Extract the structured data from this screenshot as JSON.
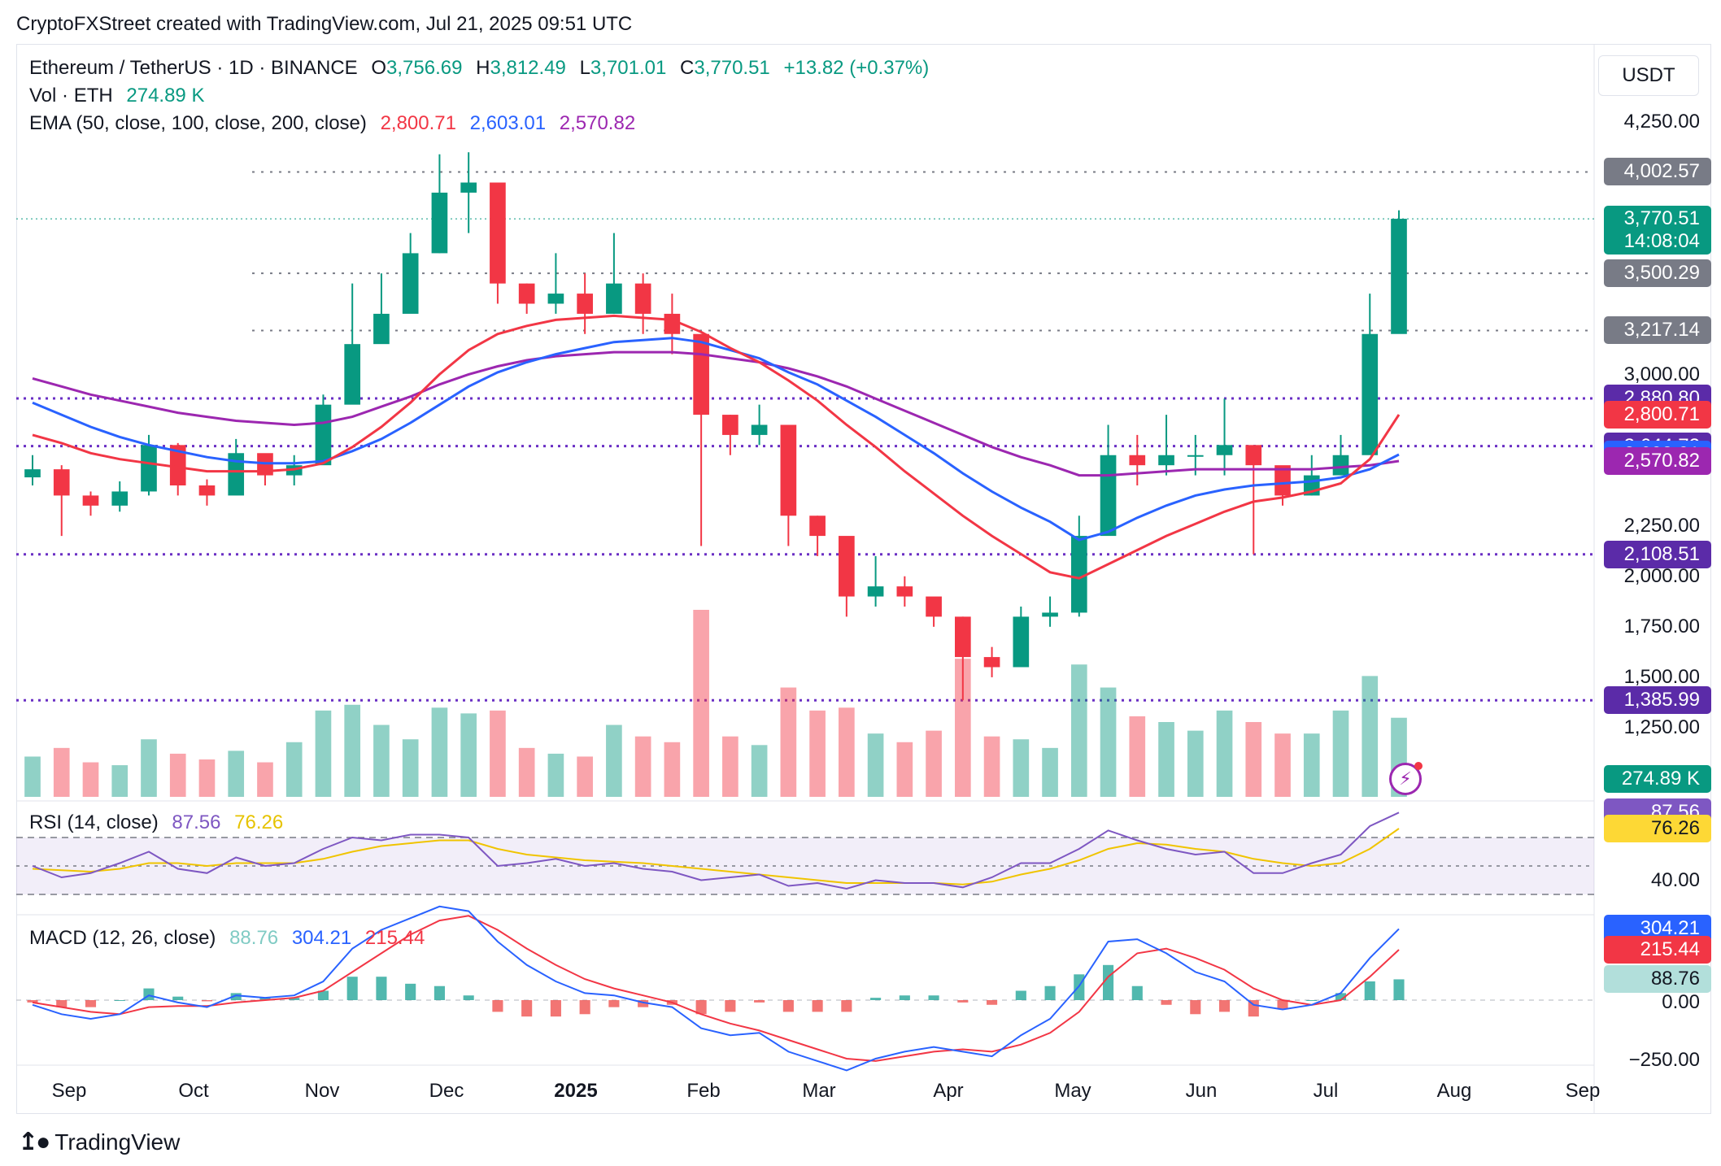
{
  "header": {
    "credit": "CryptoFXStreet created with TradingView.com, Jul 21, 2025 09:51 UTC"
  },
  "legend": {
    "symbol": "Ethereum / TetherUS · 1D · BINANCE",
    "open_label": "O",
    "open": "3,756.69",
    "high_label": "H",
    "high": "3,812.49",
    "low_label": "L",
    "low": "3,701.01",
    "close_label": "C",
    "close": "3,770.51",
    "change": "+13.82 (+0.37%)",
    "vol_label": "Vol · ETH",
    "vol": "274.89 K",
    "ema_label": "EMA (50, close, 100, close, 200, close)",
    "ema50": "2,800.71",
    "ema100": "2,603.01",
    "ema200": "2,570.82",
    "rsi_label": "RSI (14, close)",
    "rsi": "87.56",
    "rsi_ma": "76.26",
    "macd_label": "MACD (12, 26, close)",
    "macd_hist": "88.76",
    "macd": "304.21",
    "macd_signal": "215.44"
  },
  "currency_button": "USDT",
  "footer": {
    "brand": "TradingView"
  },
  "colors": {
    "up": "#089981",
    "down": "#f23645",
    "ema50": "#f23645",
    "ema100": "#2962ff",
    "ema200": "#9c27b0",
    "level": "#6a2fc4",
    "rsi": "#7e57c2",
    "rsi_ma": "#fdd835",
    "macd": "#2962ff",
    "signal": "#f23645",
    "hist_up": "#26a69a",
    "hist_down": "#ef5350",
    "neutral": "#808080"
  },
  "price_axis": {
    "ticks": [
      "4,250.00",
      "3,000.00",
      "2,250.00",
      "2,000.00",
      "1,750.00",
      "1,500.00",
      "1,250.00"
    ]
  },
  "rsi_axis": {
    "ticks": [
      "40.00"
    ]
  },
  "macd_axis": {
    "ticks": [
      "0.00",
      "−250.00"
    ]
  },
  "time_axis": {
    "ticks": [
      "Sep",
      "Oct",
      "Nov",
      "Dec",
      "2025",
      "Feb",
      "Mar",
      "Apr",
      "May",
      "Jun",
      "Jul",
      "Aug",
      "Sep"
    ]
  },
  "price_labels": [
    {
      "text": "4,002.57",
      "color": "#787b86"
    },
    {
      "text": "3,770.51",
      "sub": "14:08:04",
      "color": "#089981"
    },
    {
      "text": "3,500.29",
      "color": "#787b86"
    },
    {
      "text": "3,217.14",
      "color": "#787b86"
    },
    {
      "text": "2,880.80",
      "color": "#5b2ba8"
    },
    {
      "text": "2,800.71",
      "color": "#f23645"
    },
    {
      "text": "2,644.72",
      "color": "#5b2ba8"
    },
    {
      "text": "2,603.01",
      "color": "#2962ff"
    },
    {
      "text": "2,570.82",
      "color": "#9c27b0"
    },
    {
      "text": "2,108.51",
      "color": "#5b2ba8"
    },
    {
      "text": "1,385.99",
      "color": "#5b2ba8"
    },
    {
      "text": "274.89 K",
      "color": "#089981"
    },
    {
      "text": "87.56",
      "color": "#7e57c2"
    },
    {
      "text": "76.26",
      "color": "#fdd835",
      "dark_text": true
    },
    {
      "text": "304.21",
      "color": "#2962ff"
    },
    {
      "text": "215.44",
      "color": "#f23645"
    },
    {
      "text": "88.76",
      "color": "#b2dfdb",
      "dark_text": true
    }
  ],
  "chart_data": {
    "type": "candlestick",
    "title": "Ethereum / TetherUS · 1D · BINANCE",
    "y_range": [
      1150,
      4400
    ],
    "dates": [
      "2024-08-28",
      "2024-09-04",
      "2024-09-11",
      "2024-09-18",
      "2024-09-25",
      "2024-10-02",
      "2024-10-09",
      "2024-10-16",
      "2024-10-23",
      "2024-10-30",
      "2024-11-06",
      "2024-11-13",
      "2024-11-20",
      "2024-11-27",
      "2024-12-04",
      "2024-12-11",
      "2024-12-18",
      "2024-12-25",
      "2025-01-01",
      "2025-01-08",
      "2025-01-15",
      "2025-01-22",
      "2025-01-29",
      "2025-02-05",
      "2025-02-12",
      "2025-02-19",
      "2025-02-26",
      "2025-03-05",
      "2025-03-12",
      "2025-03-19",
      "2025-03-26",
      "2025-04-02",
      "2025-04-09",
      "2025-04-16",
      "2025-04-23",
      "2025-04-30",
      "2025-05-07",
      "2025-05-14",
      "2025-05-21",
      "2025-05-28",
      "2025-06-04",
      "2025-06-11",
      "2025-06-18",
      "2025-06-25",
      "2025-07-02",
      "2025-07-09",
      "2025-07-16",
      "2025-07-21"
    ],
    "close": [
      2530,
      2400,
      2350,
      2420,
      2650,
      2450,
      2400,
      2610,
      2500,
      2550,
      2850,
      3150,
      3300,
      3600,
      3900,
      3950,
      3450,
      3350,
      3400,
      3300,
      3450,
      3300,
      3200,
      2800,
      2700,
      2750,
      2300,
      2200,
      1900,
      1950,
      1900,
      1800,
      1600,
      1550,
      1800,
      1820,
      2200,
      2600,
      2550,
      2600,
      2600,
      2650,
      2550,
      2400,
      2500,
      2600,
      3200,
      3770.51
    ],
    "high": [
      2600,
      2550,
      2420,
      2470,
      2700,
      2660,
      2480,
      2680,
      2600,
      2600,
      2900,
      3450,
      3500,
      3700,
      4090,
      4100,
      3800,
      3450,
      3600,
      3500,
      3700,
      3500,
      3400,
      3200,
      2800,
      2850,
      2700,
      2300,
      2050,
      2100,
      2000,
      1850,
      1800,
      1650,
      1850,
      1900,
      2300,
      2750,
      2700,
      2800,
      2700,
      2880,
      2600,
      2500,
      2600,
      2700,
      3400,
      3812.49
    ],
    "low": [
      2450,
      2200,
      2300,
      2320,
      2400,
      2400,
      2350,
      2550,
      2450,
      2450,
      2600,
      2900,
      3200,
      3350,
      3600,
      3700,
      3350,
      3300,
      3300,
      3200,
      3300,
      3200,
      3100,
      2150,
      2600,
      2650,
      2150,
      2100,
      1800,
      1850,
      1850,
      1750,
      1385.99,
      1500,
      1550,
      1750,
      1800,
      2450,
      2450,
      2500,
      2500,
      2500,
      2108.51,
      2350,
      2400,
      2550,
      2950,
      3701.01
    ],
    "ema50": [
      2700,
      2660,
      2610,
      2580,
      2560,
      2540,
      2520,
      2520,
      2520,
      2530,
      2560,
      2640,
      2740,
      2860,
      3000,
      3120,
      3200,
      3240,
      3270,
      3280,
      3290,
      3280,
      3270,
      3210,
      3130,
      3060,
      2970,
      2870,
      2750,
      2640,
      2520,
      2410,
      2300,
      2200,
      2110,
      2020,
      1990,
      2060,
      2130,
      2200,
      2260,
      2320,
      2370,
      2390,
      2420,
      2460,
      2580,
      2800.71
    ],
    "ema100": [
      2860,
      2800,
      2740,
      2690,
      2650,
      2620,
      2590,
      2570,
      2560,
      2560,
      2570,
      2620,
      2680,
      2760,
      2850,
      2940,
      3010,
      3060,
      3100,
      3130,
      3160,
      3170,
      3180,
      3160,
      3120,
      3080,
      3010,
      2950,
      2870,
      2790,
      2700,
      2610,
      2510,
      2420,
      2340,
      2270,
      2180,
      2220,
      2290,
      2350,
      2400,
      2430,
      2450,
      2460,
      2470,
      2490,
      2530,
      2603.01
    ],
    "ema200": [
      2980,
      2940,
      2900,
      2870,
      2840,
      2810,
      2790,
      2770,
      2760,
      2750,
      2760,
      2790,
      2840,
      2890,
      2950,
      3000,
      3040,
      3070,
      3090,
      3100,
      3110,
      3110,
      3110,
      3100,
      3080,
      3060,
      3030,
      2990,
      2940,
      2880,
      2820,
      2760,
      2700,
      2640,
      2590,
      2550,
      2500,
      2500,
      2510,
      2520,
      2530,
      2530,
      2530,
      2530,
      2530,
      2540,
      2550,
      2570.82
    ],
    "levels": [
      4002.57,
      3500.29,
      3217.14,
      2880.8,
      2644.72,
      2108.51,
      1385.99
    ],
    "rsi": [
      50,
      42,
      45,
      52,
      60,
      48,
      45,
      56,
      50,
      52,
      62,
      70,
      68,
      72,
      72,
      70,
      50,
      52,
      55,
      50,
      52,
      48,
      46,
      40,
      42,
      44,
      36,
      38,
      34,
      40,
      38,
      38,
      35,
      42,
      52,
      52,
      62,
      75,
      68,
      62,
      58,
      60,
      45,
      45,
      52,
      58,
      78,
      87.56
    ],
    "rsi_ma": [
      48,
      47,
      46,
      48,
      52,
      52,
      50,
      52,
      52,
      52,
      55,
      60,
      64,
      66,
      68,
      68,
      62,
      58,
      56,
      54,
      53,
      52,
      50,
      48,
      46,
      44,
      42,
      40,
      38,
      38,
      38,
      38,
      37,
      39,
      44,
      48,
      54,
      62,
      66,
      65,
      62,
      60,
      55,
      52,
      50,
      52,
      62,
      76.26
    ],
    "macd": [
      -20,
      -60,
      -80,
      -60,
      20,
      -10,
      -30,
      20,
      10,
      20,
      80,
      220,
      300,
      350,
      400,
      380,
      250,
      150,
      80,
      30,
      20,
      -10,
      -30,
      -120,
      -150,
      -140,
      -220,
      -260,
      -300,
      -250,
      -220,
      -200,
      -220,
      -240,
      -150,
      -80,
      60,
      250,
      260,
      200,
      120,
      80,
      -20,
      -40,
      -20,
      30,
      180,
      304.21
    ],
    "macd_signal": [
      -10,
      -30,
      -50,
      -60,
      -30,
      -25,
      -25,
      -10,
      0,
      10,
      40,
      120,
      200,
      280,
      340,
      360,
      300,
      220,
      150,
      90,
      50,
      20,
      -10,
      -60,
      -100,
      -130,
      -170,
      -210,
      -250,
      -260,
      -240,
      -220,
      -210,
      -220,
      -190,
      -140,
      -50,
      100,
      200,
      220,
      180,
      130,
      50,
      0,
      -20,
      0,
      100,
      215.44
    ],
    "macd_hist": [
      -10,
      -30,
      -30,
      0,
      50,
      15,
      -5,
      30,
      10,
      10,
      40,
      100,
      100,
      70,
      60,
      20,
      -50,
      -70,
      -70,
      -60,
      -30,
      -30,
      -20,
      -60,
      -50,
      -10,
      -50,
      -50,
      -50,
      10,
      20,
      20,
      -10,
      -20,
      40,
      60,
      110,
      150,
      60,
      -20,
      -60,
      -50,
      -70,
      -40,
      0,
      30,
      80,
      88.76
    ],
    "volume": [
      140,
      170,
      120,
      110,
      200,
      150,
      130,
      160,
      120,
      190,
      300,
      320,
      250,
      200,
      310,
      290,
      300,
      170,
      150,
      140,
      250,
      210,
      190,
      650,
      210,
      180,
      380,
      300,
      310,
      220,
      190,
      230,
      480,
      210,
      200,
      170,
      460,
      380,
      280,
      260,
      230,
      300,
      260,
      220,
      220,
      300,
      420,
      274.89
    ]
  }
}
